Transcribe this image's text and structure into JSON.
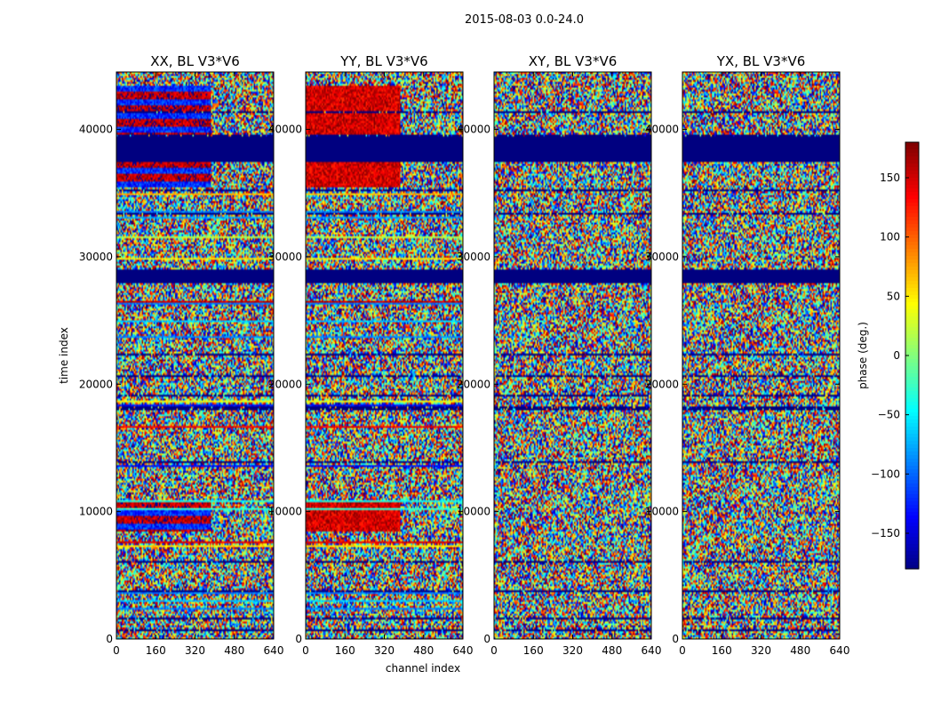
{
  "chart_data": {
    "type": "heatmap",
    "suptitle": "2015-08-03 0.0-24.0",
    "xlabel": "channel index",
    "ylabel": "time index",
    "xlim": [
      0,
      640
    ],
    "ylim": [
      0,
      44500
    ],
    "xticks": [
      "0",
      "160",
      "320",
      "480",
      "640"
    ],
    "xtick_values": [
      0,
      160,
      320,
      480,
      640
    ],
    "yticks": [
      "0",
      "10000",
      "20000",
      "30000",
      "40000"
    ],
    "ytick_values": [
      0,
      10000,
      20000,
      30000,
      40000
    ],
    "panels": [
      {
        "title": "XX, BL V3*V6",
        "pol": "XX"
      },
      {
        "title": "YY, BL V3*V6",
        "pol": "YY"
      },
      {
        "title": "XY, BL V3*V6",
        "pol": "XY"
      },
      {
        "title": "YX, BL V3*V6",
        "pol": "YX"
      }
    ],
    "colorbar": {
      "label": "phase (deg.)",
      "vmin": -180,
      "vmax": 180,
      "ticks": [
        "150",
        "100",
        "50",
        "0",
        "−50",
        "−100",
        "−150"
      ],
      "tick_values": [
        150,
        100,
        50,
        0,
        -50,
        -100,
        -150
      ],
      "colormap": "jet"
    },
    "features": [
      {
        "desc": "dark blue flagged block",
        "t_start": 28000,
        "t_end": 29000,
        "phase": -180
      },
      {
        "desc": "dark blue flagged block",
        "t_start": 37500,
        "t_end": 39500,
        "phase": -180
      }
    ]
  }
}
